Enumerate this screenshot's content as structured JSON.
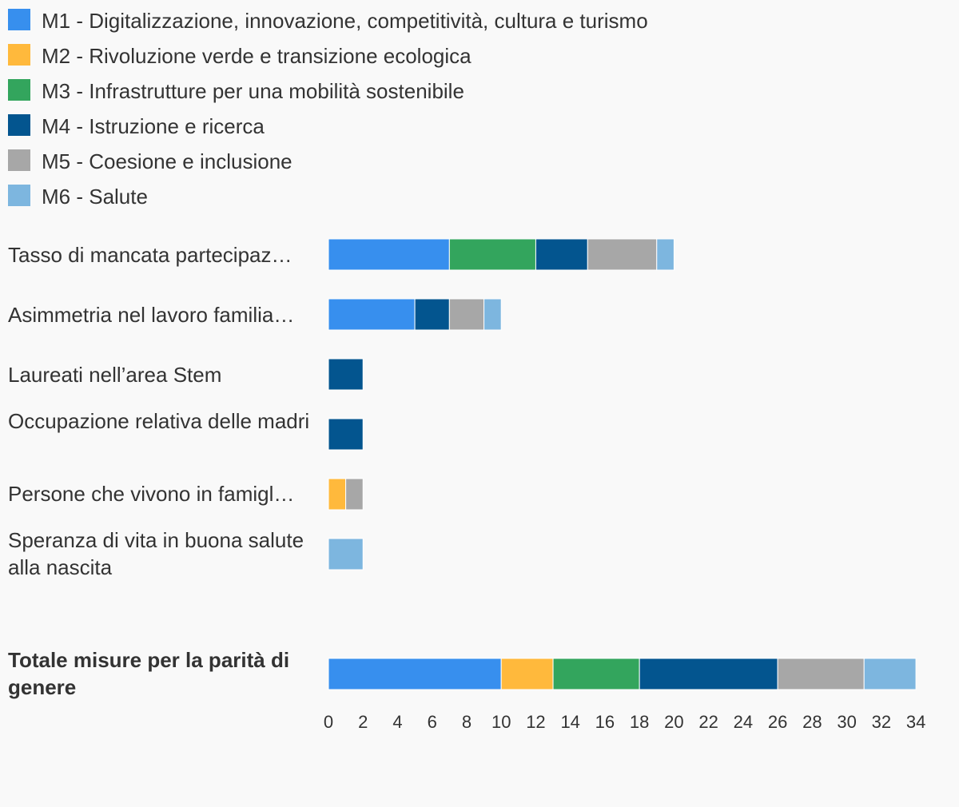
{
  "chart_data": {
    "type": "bar",
    "orientation": "horizontal",
    "stacked": true,
    "legend_position": "top-left",
    "grid": false,
    "series": [
      {
        "name": "M1 - Digitalizzazione, innovazione, competitività, cultura e turismo",
        "color": "#378fee",
        "values": [
          7,
          5,
          0,
          0,
          0,
          0,
          10
        ]
      },
      {
        "name": "M2 - Rivoluzione verde e transizione ecologica",
        "color": "#ffb93c",
        "values": [
          0,
          0,
          0,
          0,
          1,
          0,
          3
        ]
      },
      {
        "name": "M3 - Infrastrutture per una mobilità sostenibile",
        "color": "#33a55d",
        "values": [
          5,
          0,
          0,
          0,
          0,
          0,
          5
        ]
      },
      {
        "name": "M4 - Istruzione e ricerca",
        "color": "#03558f",
        "values": [
          3,
          2,
          2,
          2,
          0,
          0,
          8
        ]
      },
      {
        "name": "M5 - Coesione e inclusione",
        "color": "#a7a7a7",
        "values": [
          4,
          2,
          0,
          0,
          1,
          0,
          5
        ]
      },
      {
        "name": "M6 - Salute",
        "color": "#7db6df",
        "values": [
          1,
          1,
          0,
          0,
          0,
          2,
          3
        ]
      }
    ],
    "categories": [
      "Tasso di mancata partecipazione al lavoro",
      "Asimmetria nel lavoro familiare",
      "Laureati nell’area Stem",
      "Occupazione relativa delle madri",
      "Persone che vivono in famiglie",
      "Speranza di vita in buona salute alla nascita",
      "Totale misure per la parità di genere"
    ],
    "category_labels_display": [
      "Tasso di mancata partecipaz…",
      "Asimmetria nel lavoro familia…",
      "Laureati nell’area Stem",
      "Occupazione relativa delle madri",
      "Persone che vivono in famigl…",
      "Speranza di vita in buona salute alla nascita",
      "Totale misure per la parità di genere"
    ],
    "xlim": [
      0,
      34
    ],
    "xticks": [
      "0",
      "2",
      "4",
      "6",
      "8",
      "10",
      "12",
      "14",
      "16",
      "18",
      "20",
      "22",
      "24",
      "26",
      "28",
      "30",
      "32",
      "34"
    ]
  }
}
